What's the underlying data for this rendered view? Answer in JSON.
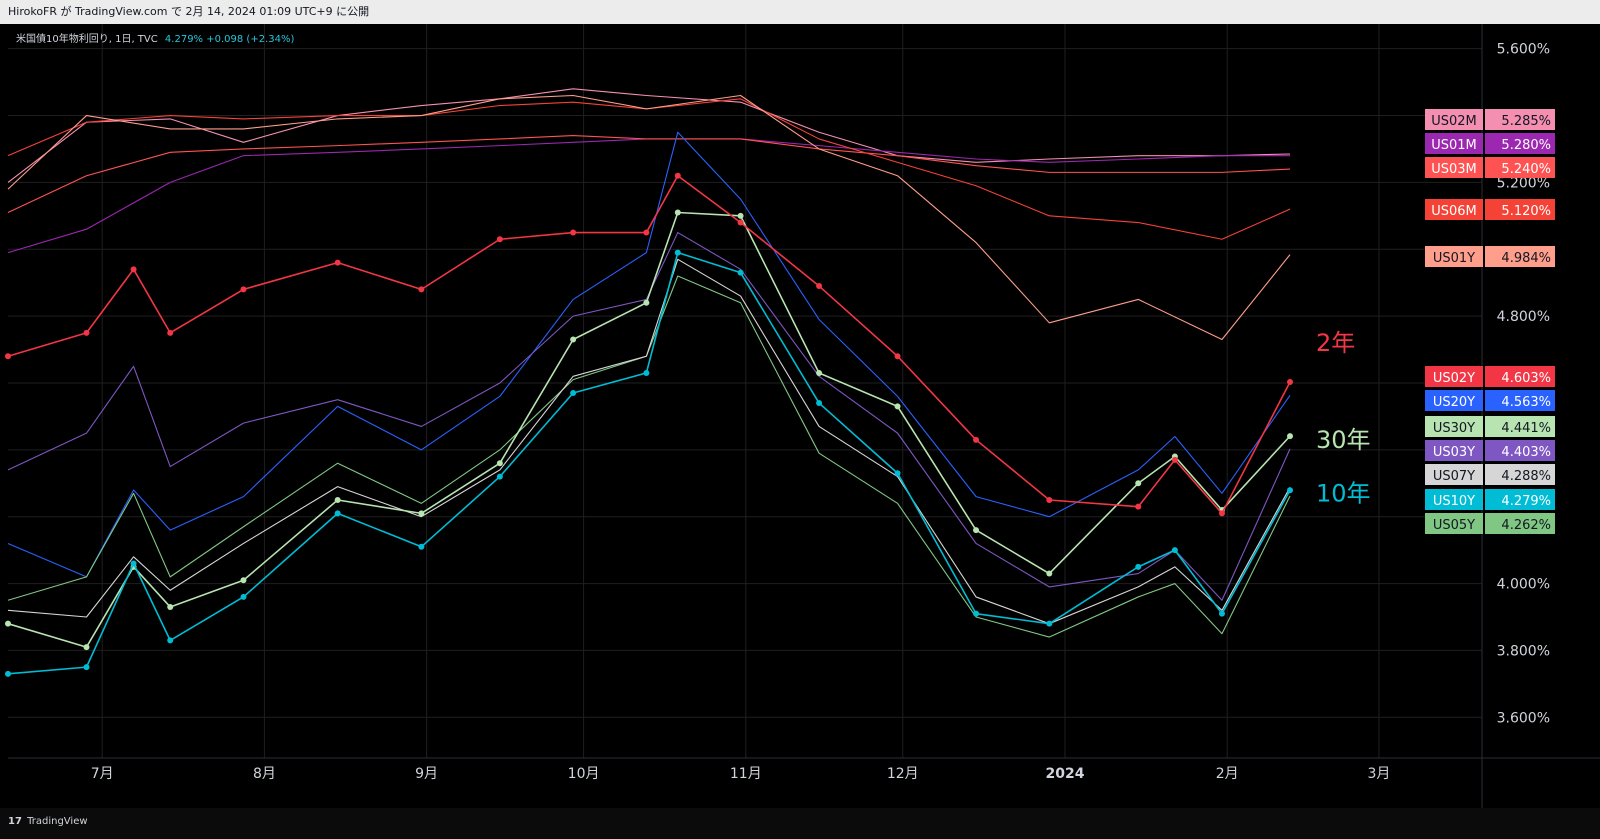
{
  "header": {
    "published_text": "HirokoFR が TradingView.com で 2月 14, 2024 01:09 UTC+9 に公開"
  },
  "legend": {
    "symbol_text": "米国債10年物利回り, 1日, TVC",
    "value_text": "4.279%  +0.098 (+2.34%)"
  },
  "footer": {
    "brand": "TradingView",
    "logo_glyph": "17"
  },
  "colors": {
    "background": "#0b0b0b",
    "grid": "#1f1f22",
    "axis_text": "#d1d4dc",
    "US02Y": "#f23645",
    "US20Y": "#2962ff",
    "US30Y": "#b7e4b0",
    "US03Y": "#7e57c2",
    "US07Y": "#d6d6d6",
    "US10Y": "#00bcd4",
    "US05Y": "#81c784",
    "US02M": "#f48fb1",
    "US01M": "#9c27b0",
    "US03M": "#ff5252",
    "US06M": "#f44336",
    "US01Y": "#ff9e8a"
  },
  "chart_data": {
    "type": "line",
    "title": "米国債10年物利回り, 1日, TVC",
    "x_axis_labels": [
      "7月",
      "8月",
      "9月",
      "10月",
      "11月",
      "12月",
      "2024",
      "2月",
      "3月"
    ],
    "y_axis_labels": [
      "5.600%",
      "5.200%",
      "4.800%",
      "4.000%",
      "3.800%",
      "3.600%"
    ],
    "ylim": [
      3.55,
      5.62
    ],
    "y_unit": "%",
    "grid": true,
    "annotations": [
      {
        "text": "2年",
        "series": "US02Y"
      },
      {
        "text": "30年",
        "series": "US30Y"
      },
      {
        "text": "10年",
        "series": "US10Y"
      }
    ],
    "series": [
      {
        "name": "US02M",
        "last": "5.285%",
        "markers": false,
        "points": [
          [
            "2023-06-13",
            5.2
          ],
          [
            "2023-06-28",
            5.38
          ],
          [
            "2023-07-14",
            5.39
          ],
          [
            "2023-07-28",
            5.32
          ],
          [
            "2023-08-15",
            5.4
          ],
          [
            "2023-08-31",
            5.43
          ],
          [
            "2023-09-15",
            5.45
          ],
          [
            "2023-09-29",
            5.48
          ],
          [
            "2023-10-13",
            5.46
          ],
          [
            "2023-10-31",
            5.44
          ],
          [
            "2023-11-15",
            5.35
          ],
          [
            "2023-11-30",
            5.28
          ],
          [
            "2023-12-15",
            5.26
          ],
          [
            "2023-12-29",
            5.27
          ],
          [
            "2024-01-15",
            5.28
          ],
          [
            "2024-01-31",
            5.28
          ],
          [
            "2024-02-13",
            5.285
          ]
        ]
      },
      {
        "name": "US01M",
        "last": "5.280%",
        "markers": false,
        "points": [
          [
            "2023-06-13",
            4.99
          ],
          [
            "2023-06-28",
            5.06
          ],
          [
            "2023-07-14",
            5.2
          ],
          [
            "2023-07-28",
            5.28
          ],
          [
            "2023-08-15",
            5.29
          ],
          [
            "2023-08-31",
            5.3
          ],
          [
            "2023-09-15",
            5.31
          ],
          [
            "2023-09-29",
            5.32
          ],
          [
            "2023-10-13",
            5.33
          ],
          [
            "2023-10-31",
            5.33
          ],
          [
            "2023-11-15",
            5.31
          ],
          [
            "2023-11-30",
            5.29
          ],
          [
            "2023-12-15",
            5.27
          ],
          [
            "2023-12-29",
            5.26
          ],
          [
            "2024-01-15",
            5.27
          ],
          [
            "2024-01-31",
            5.28
          ],
          [
            "2024-02-13",
            5.28
          ]
        ]
      },
      {
        "name": "US03M",
        "last": "5.240%",
        "markers": false,
        "points": [
          [
            "2023-06-13",
            5.11
          ],
          [
            "2023-06-28",
            5.22
          ],
          [
            "2023-07-14",
            5.29
          ],
          [
            "2023-07-28",
            5.3
          ],
          [
            "2023-08-15",
            5.31
          ],
          [
            "2023-08-31",
            5.32
          ],
          [
            "2023-09-15",
            5.33
          ],
          [
            "2023-09-29",
            5.34
          ],
          [
            "2023-10-13",
            5.33
          ],
          [
            "2023-10-31",
            5.33
          ],
          [
            "2023-11-15",
            5.3
          ],
          [
            "2023-11-30",
            5.28
          ],
          [
            "2023-12-15",
            5.25
          ],
          [
            "2023-12-29",
            5.23
          ],
          [
            "2024-01-15",
            5.23
          ],
          [
            "2024-01-31",
            5.23
          ],
          [
            "2024-02-13",
            5.24
          ]
        ]
      },
      {
        "name": "US06M",
        "last": "5.120%",
        "markers": false,
        "points": [
          [
            "2023-06-13",
            5.28
          ],
          [
            "2023-06-28",
            5.38
          ],
          [
            "2023-07-14",
            5.4
          ],
          [
            "2023-07-28",
            5.39
          ],
          [
            "2023-08-15",
            5.4
          ],
          [
            "2023-08-31",
            5.4
          ],
          [
            "2023-09-15",
            5.43
          ],
          [
            "2023-09-29",
            5.44
          ],
          [
            "2023-10-13",
            5.42
          ],
          [
            "2023-10-31",
            5.45
          ],
          [
            "2023-11-15",
            5.33
          ],
          [
            "2023-11-30",
            5.26
          ],
          [
            "2023-12-15",
            5.19
          ],
          [
            "2023-12-29",
            5.1
          ],
          [
            "2024-01-15",
            5.08
          ],
          [
            "2024-01-31",
            5.03
          ],
          [
            "2024-02-13",
            5.12
          ]
        ]
      },
      {
        "name": "US01Y",
        "last": "4.984%",
        "markers": false,
        "points": [
          [
            "2023-06-13",
            5.18
          ],
          [
            "2023-06-28",
            5.4
          ],
          [
            "2023-07-14",
            5.36
          ],
          [
            "2023-07-28",
            5.36
          ],
          [
            "2023-08-15",
            5.39
          ],
          [
            "2023-08-31",
            5.4
          ],
          [
            "2023-09-15",
            5.45
          ],
          [
            "2023-09-29",
            5.46
          ],
          [
            "2023-10-13",
            5.42
          ],
          [
            "2023-10-31",
            5.46
          ],
          [
            "2023-11-15",
            5.3
          ],
          [
            "2023-11-30",
            5.22
          ],
          [
            "2023-12-15",
            5.02
          ],
          [
            "2023-12-29",
            4.78
          ],
          [
            "2024-01-15",
            4.85
          ],
          [
            "2024-01-31",
            4.73
          ],
          [
            "2024-02-13",
            4.984
          ]
        ]
      },
      {
        "name": "US20Y",
        "last": "4.563%",
        "markers": false,
        "points": [
          [
            "2023-06-13",
            4.12
          ],
          [
            "2023-06-28",
            4.02
          ],
          [
            "2023-07-07",
            4.28
          ],
          [
            "2023-07-14",
            4.16
          ],
          [
            "2023-07-28",
            4.26
          ],
          [
            "2023-08-15",
            4.53
          ],
          [
            "2023-08-31",
            4.4
          ],
          [
            "2023-09-15",
            4.56
          ],
          [
            "2023-09-29",
            4.85
          ],
          [
            "2023-10-13",
            4.99
          ],
          [
            "2023-10-19",
            5.35
          ],
          [
            "2023-10-31",
            5.15
          ],
          [
            "2023-11-15",
            4.79
          ],
          [
            "2023-11-30",
            4.56
          ],
          [
            "2023-12-15",
            4.26
          ],
          [
            "2023-12-29",
            4.2
          ],
          [
            "2024-01-15",
            4.34
          ],
          [
            "2024-01-22",
            4.44
          ],
          [
            "2024-01-31",
            4.27
          ],
          [
            "2024-02-13",
            4.563
          ]
        ]
      },
      {
        "name": "US03Y",
        "last": "4.403%",
        "markers": false,
        "points": [
          [
            "2023-06-13",
            4.34
          ],
          [
            "2023-06-28",
            4.45
          ],
          [
            "2023-07-07",
            4.65
          ],
          [
            "2023-07-14",
            4.35
          ],
          [
            "2023-07-28",
            4.48
          ],
          [
            "2023-08-15",
            4.55
          ],
          [
            "2023-08-31",
            4.47
          ],
          [
            "2023-09-15",
            4.6
          ],
          [
            "2023-09-29",
            4.8
          ],
          [
            "2023-10-13",
            4.85
          ],
          [
            "2023-10-19",
            5.05
          ],
          [
            "2023-10-31",
            4.94
          ],
          [
            "2023-11-15",
            4.62
          ],
          [
            "2023-11-30",
            4.45
          ],
          [
            "2023-12-15",
            4.12
          ],
          [
            "2023-12-29",
            3.99
          ],
          [
            "2024-01-15",
            4.03
          ],
          [
            "2024-01-22",
            4.1
          ],
          [
            "2024-01-31",
            3.95
          ],
          [
            "2024-02-13",
            4.403
          ]
        ]
      },
      {
        "name": "US30Y",
        "last": "4.441%",
        "markers": true,
        "points": [
          [
            "2023-06-13",
            3.88
          ],
          [
            "2023-06-28",
            3.81
          ],
          [
            "2023-07-07",
            4.05
          ],
          [
            "2023-07-14",
            3.93
          ],
          [
            "2023-07-28",
            4.01
          ],
          [
            "2023-08-15",
            4.25
          ],
          [
            "2023-08-31",
            4.21
          ],
          [
            "2023-09-15",
            4.36
          ],
          [
            "2023-09-29",
            4.73
          ],
          [
            "2023-10-13",
            4.84
          ],
          [
            "2023-10-19",
            5.11
          ],
          [
            "2023-10-31",
            5.1
          ],
          [
            "2023-11-15",
            4.63
          ],
          [
            "2023-11-30",
            4.53
          ],
          [
            "2023-12-15",
            4.16
          ],
          [
            "2023-12-29",
            4.03
          ],
          [
            "2024-01-15",
            4.3
          ],
          [
            "2024-01-22",
            4.38
          ],
          [
            "2024-01-31",
            4.22
          ],
          [
            "2024-02-13",
            4.441
          ]
        ]
      },
      {
        "name": "US07Y",
        "last": "4.288%",
        "markers": false,
        "points": [
          [
            "2023-06-13",
            3.92
          ],
          [
            "2023-06-28",
            3.9
          ],
          [
            "2023-07-07",
            4.08
          ],
          [
            "2023-07-14",
            3.98
          ],
          [
            "2023-07-28",
            4.12
          ],
          [
            "2023-08-15",
            4.29
          ],
          [
            "2023-08-31",
            4.2
          ],
          [
            "2023-09-15",
            4.34
          ],
          [
            "2023-09-29",
            4.62
          ],
          [
            "2023-10-13",
            4.68
          ],
          [
            "2023-10-19",
            4.97
          ],
          [
            "2023-10-31",
            4.86
          ],
          [
            "2023-11-15",
            4.47
          ],
          [
            "2023-11-30",
            4.32
          ],
          [
            "2023-12-15",
            3.96
          ],
          [
            "2023-12-29",
            3.88
          ],
          [
            "2024-01-15",
            3.99
          ],
          [
            "2024-01-22",
            4.05
          ],
          [
            "2024-01-31",
            3.92
          ],
          [
            "2024-02-13",
            4.288
          ]
        ]
      },
      {
        "name": "US10Y",
        "last": "4.279%",
        "markers": true,
        "points": [
          [
            "2023-06-13",
            3.73
          ],
          [
            "2023-06-28",
            3.75
          ],
          [
            "2023-07-07",
            4.06
          ],
          [
            "2023-07-14",
            3.83
          ],
          [
            "2023-07-28",
            3.96
          ],
          [
            "2023-08-15",
            4.21
          ],
          [
            "2023-08-31",
            4.11
          ],
          [
            "2023-09-15",
            4.32
          ],
          [
            "2023-09-29",
            4.57
          ],
          [
            "2023-10-13",
            4.63
          ],
          [
            "2023-10-19",
            4.99
          ],
          [
            "2023-10-31",
            4.93
          ],
          [
            "2023-11-15",
            4.54
          ],
          [
            "2023-11-30",
            4.33
          ],
          [
            "2023-12-15",
            3.91
          ],
          [
            "2023-12-29",
            3.88
          ],
          [
            "2024-01-15",
            4.05
          ],
          [
            "2024-01-22",
            4.1
          ],
          [
            "2024-01-31",
            3.91
          ],
          [
            "2024-02-13",
            4.279
          ]
        ]
      },
      {
        "name": "US05Y",
        "last": "4.262%",
        "markers": false,
        "points": [
          [
            "2023-06-13",
            3.95
          ],
          [
            "2023-06-28",
            4.02
          ],
          [
            "2023-07-07",
            4.27
          ],
          [
            "2023-07-14",
            4.02
          ],
          [
            "2023-07-28",
            4.17
          ],
          [
            "2023-08-15",
            4.36
          ],
          [
            "2023-08-31",
            4.24
          ],
          [
            "2023-09-15",
            4.4
          ],
          [
            "2023-09-29",
            4.61
          ],
          [
            "2023-10-13",
            4.68
          ],
          [
            "2023-10-19",
            4.92
          ],
          [
            "2023-10-31",
            4.84
          ],
          [
            "2023-11-15",
            4.39
          ],
          [
            "2023-11-30",
            4.24
          ],
          [
            "2023-12-15",
            3.9
          ],
          [
            "2023-12-29",
            3.84
          ],
          [
            "2024-01-15",
            3.96
          ],
          [
            "2024-01-22",
            4.0
          ],
          [
            "2024-01-31",
            3.85
          ],
          [
            "2024-02-13",
            4.262
          ]
        ]
      },
      {
        "name": "US02Y",
        "last": "4.603%",
        "markers": true,
        "points": [
          [
            "2023-06-13",
            4.68
          ],
          [
            "2023-06-28",
            4.75
          ],
          [
            "2023-07-07",
            4.94
          ],
          [
            "2023-07-14",
            4.75
          ],
          [
            "2023-07-28",
            4.88
          ],
          [
            "2023-08-15",
            4.96
          ],
          [
            "2023-08-31",
            4.88
          ],
          [
            "2023-09-15",
            5.03
          ],
          [
            "2023-09-29",
            5.05
          ],
          [
            "2023-10-13",
            5.05
          ],
          [
            "2023-10-19",
            5.22
          ],
          [
            "2023-10-31",
            5.08
          ],
          [
            "2023-11-15",
            4.89
          ],
          [
            "2023-11-30",
            4.68
          ],
          [
            "2023-12-15",
            4.43
          ],
          [
            "2023-12-29",
            4.25
          ],
          [
            "2024-01-15",
            4.23
          ],
          [
            "2024-01-22",
            4.37
          ],
          [
            "2024-01-31",
            4.21
          ],
          [
            "2024-02-13",
            4.603
          ]
        ]
      }
    ],
    "price_tag_order": [
      "US02M",
      "US01M",
      "US03M",
      "US06M",
      "US01Y",
      "US02Y",
      "US20Y",
      "US30Y",
      "US03Y",
      "US07Y",
      "US10Y",
      "US05Y"
    ]
  }
}
